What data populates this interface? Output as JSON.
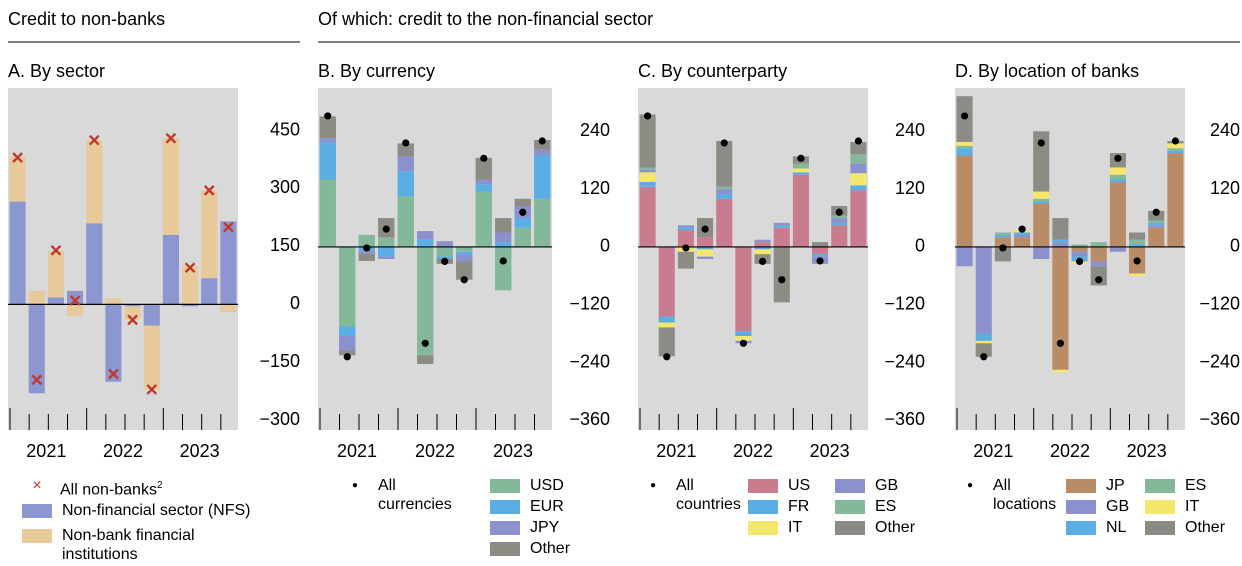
{
  "headers": [
    "Credit to non-banks",
    "Of which: credit to the non-financial sector"
  ],
  "chart_data": [
    {
      "type": "bar",
      "stacked": true,
      "title": "A. By sector",
      "categories": [
        null,
        null,
        null,
        null,
        null,
        null,
        null,
        null,
        null,
        null,
        null,
        null
      ],
      "year_labels": [
        "2021",
        "2022",
        "2023"
      ],
      "ylim": [
        -325,
        560
      ],
      "yticks": [
        {
          "value": 450,
          "label": "450"
        },
        {
          "value": 300,
          "label": "300"
        },
        {
          "value": 150,
          "label": "150"
        },
        0,
        {
          "value": -150,
          "label": "−150"
        },
        {
          "value": -300,
          "label": "−300"
        }
      ],
      "total": {
        "name": "All non-banks",
        "note": "2",
        "marker": "cross",
        "color": "#c0392b",
        "values": [
          380,
          -195,
          140,
          10,
          425,
          -180,
          -40,
          -220,
          430,
          95,
          295,
          200
        ]
      },
      "series": [
        {
          "name": "Non-financial sector (NFS)",
          "color": "#8c96d0",
          "values": [
            266,
            -230,
            18,
            35,
            210,
            -200,
            -5,
            -55,
            180,
            -5,
            68,
            215
          ]
        },
        {
          "name": "Non-bank financial institutions",
          "color": "#e8c99a",
          "values": [
            116,
            35,
            120,
            -30,
            215,
            15,
            -35,
            -165,
            250,
            100,
            227,
            -20
          ]
        }
      ]
    },
    {
      "type": "bar",
      "stacked": true,
      "title": "B. By currency",
      "categories": [
        null,
        null,
        null,
        null,
        null,
        null,
        null,
        null,
        null,
        null,
        null,
        null
      ],
      "year_labels": [
        "2021",
        "2022",
        "2023"
      ],
      "ylim": [
        -380,
        330
      ],
      "yticks": [
        240,
        120,
        0,
        {
          "value": -120,
          "label": "−120"
        },
        {
          "value": -240,
          "label": "−240"
        },
        {
          "value": -360,
          "label": "−360"
        }
      ],
      "total": {
        "name": "All currencies",
        "marker": "dot",
        "color": "#000000",
        "values": [
          272,
          -228,
          -2,
          37,
          216,
          -200,
          -30,
          -68,
          184,
          -29,
          72,
          220
        ]
      },
      "series": [
        {
          "name": "USD",
          "color": "#84b89a",
          "values": [
            140,
            -165,
            25,
            20,
            105,
            -225,
            -20,
            -10,
            115,
            -90,
            40,
            100
          ]
        },
        {
          "name": "EUR",
          "color": "#5aaee3",
          "values": [
            78,
            -20,
            -8,
            -20,
            52,
            15,
            -5,
            -5,
            15,
            10,
            20,
            90
          ]
        },
        {
          "name": "JPY",
          "color": "#8b91cc",
          "values": [
            8,
            -30,
            -6,
            -5,
            31,
            18,
            12,
            -15,
            10,
            20,
            25,
            12
          ]
        },
        {
          "name": "Other",
          "color": "#8c8c85",
          "values": [
            45,
            -10,
            -15,
            40,
            27,
            -18,
            -10,
            -38,
            45,
            30,
            15,
            20
          ]
        }
      ]
    },
    {
      "type": "bar",
      "stacked": true,
      "title": "C. By counterparty",
      "categories": [
        null,
        null,
        null,
        null,
        null,
        null,
        null,
        null,
        null,
        null,
        null,
        null
      ],
      "year_labels": [
        "2021",
        "2022",
        "2023"
      ],
      "ylim": [
        -380,
        330
      ],
      "yticks": [
        240,
        120,
        0,
        {
          "value": -120,
          "label": "−120"
        },
        {
          "value": -240,
          "label": "−240"
        },
        {
          "value": -360,
          "label": "−360"
        }
      ],
      "total": {
        "name": "All countries",
        "marker": "dot",
        "color": "#000000",
        "values": [
          272,
          -228,
          -2,
          37,
          216,
          -200,
          -30,
          -68,
          184,
          -29,
          72,
          220
        ]
      },
      "series": [
        {
          "name": "US",
          "color": "#c97c8e",
          "values": [
            125,
            -145,
            35,
            20,
            100,
            -175,
            10,
            40,
            150,
            -15,
            45,
            118
          ]
        },
        {
          "name": "FR",
          "color": "#5aaee3",
          "values": [
            10,
            -12,
            5,
            -5,
            10,
            -10,
            -5,
            5,
            5,
            -5,
            5,
            10
          ]
        },
        {
          "name": "IT",
          "color": "#f5e66e",
          "values": [
            20,
            -10,
            -10,
            -15,
            0,
            -10,
            -10,
            0,
            8,
            0,
            0,
            25
          ]
        },
        {
          "name": "GB",
          "color": "#8b91cc",
          "values": [
            5,
            0,
            5,
            -5,
            10,
            -5,
            5,
            5,
            0,
            -15,
            10,
            20
          ]
        },
        {
          "name": "ES",
          "color": "#84b89a",
          "values": [
            5,
            0,
            0,
            0,
            5,
            0,
            0,
            0,
            10,
            0,
            5,
            20
          ]
        },
        {
          "name": "Other",
          "color": "#8c8c85",
          "values": [
            110,
            -60,
            -35,
            40,
            95,
            0,
            -20,
            -115,
            15,
            10,
            20,
            25
          ]
        }
      ]
    },
    {
      "type": "bar",
      "stacked": true,
      "title": "D. By location of banks",
      "categories": [
        null,
        null,
        null,
        null,
        null,
        null,
        null,
        null,
        null,
        null,
        null,
        null
      ],
      "year_labels": [
        "2021",
        "2022",
        "2023"
      ],
      "ylim": [
        -380,
        330
      ],
      "yticks": [
        240,
        120,
        0,
        {
          "value": -120,
          "label": "−120"
        },
        {
          "value": -240,
          "label": "−240"
        },
        {
          "value": -360,
          "label": "−360"
        }
      ],
      "total": {
        "name": "All locations",
        "marker": "dot",
        "color": "#000000",
        "values": [
          272,
          -228,
          -2,
          37,
          216,
          -200,
          -30,
          -68,
          184,
          -29,
          72,
          220
        ]
      },
      "series": [
        {
          "name": "JP",
          "color": "#b98b67",
          "values": [
            190,
            0,
            20,
            20,
            90,
            -255,
            -10,
            -30,
            135,
            -55,
            40,
            195
          ]
        },
        {
          "name": "GB",
          "color": "#8b91cc",
          "values": [
            -40,
            -180,
            0,
            5,
            -25,
            10,
            -10,
            -10,
            -10,
            0,
            5,
            0
          ]
        },
        {
          "name": "NL",
          "color": "#5aaee3",
          "values": [
            15,
            -15,
            5,
            5,
            5,
            5,
            -10,
            0,
            5,
            5,
            5,
            5
          ]
        },
        {
          "name": "ES",
          "color": "#84b89a",
          "values": [
            5,
            0,
            5,
            0,
            5,
            0,
            5,
            10,
            10,
            10,
            5,
            5
          ]
        },
        {
          "name": "IT",
          "color": "#f5e66e",
          "values": [
            8,
            -5,
            0,
            5,
            15,
            -5,
            -5,
            0,
            15,
            -5,
            0,
            10
          ]
        },
        {
          "name": "Other",
          "color": "#8c8c85",
          "values": [
            95,
            -28,
            -30,
            0,
            125,
            45,
            0,
            -40,
            30,
            15,
            20,
            5
          ]
        }
      ]
    }
  ]
}
